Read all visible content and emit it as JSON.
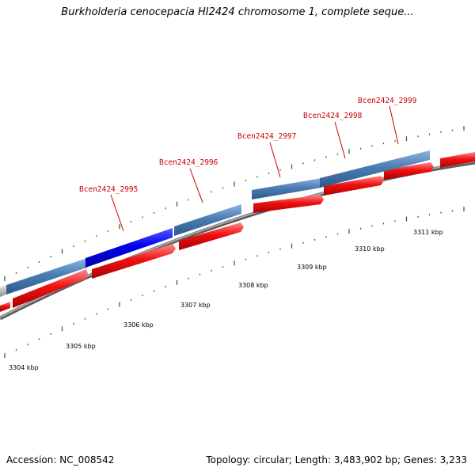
{
  "title": "Burkholderia cenocepacia HI2424 chromosome 1, complete seque...",
  "footer": {
    "accession": "Accession: NC_008542",
    "summary": "Topology: circular; Length: 3,483,902 bp; Genes: 3,233"
  },
  "colors": {
    "upper_gene": "#4a7db5",
    "highlight_gene": "#0000ee",
    "grey_gene": "#bdbdbd",
    "lower_gene": "#ee1111",
    "backbone": "#888888",
    "tick": "#1a7a1a",
    "gene_label": "#cc0000"
  },
  "scale_ticks": [
    "3304 kbp",
    "3305 kbp",
    "3306 kbp",
    "3307 kbp",
    "3308 kbp",
    "3309 kbp",
    "3310 kbp",
    "3311 kbp"
  ],
  "gene_labels": [
    "Bcen2424_2995",
    "Bcen2424_2996",
    "Bcen2424_2997",
    "Bcen2424_2998",
    "Bcen2424_2999"
  ]
}
